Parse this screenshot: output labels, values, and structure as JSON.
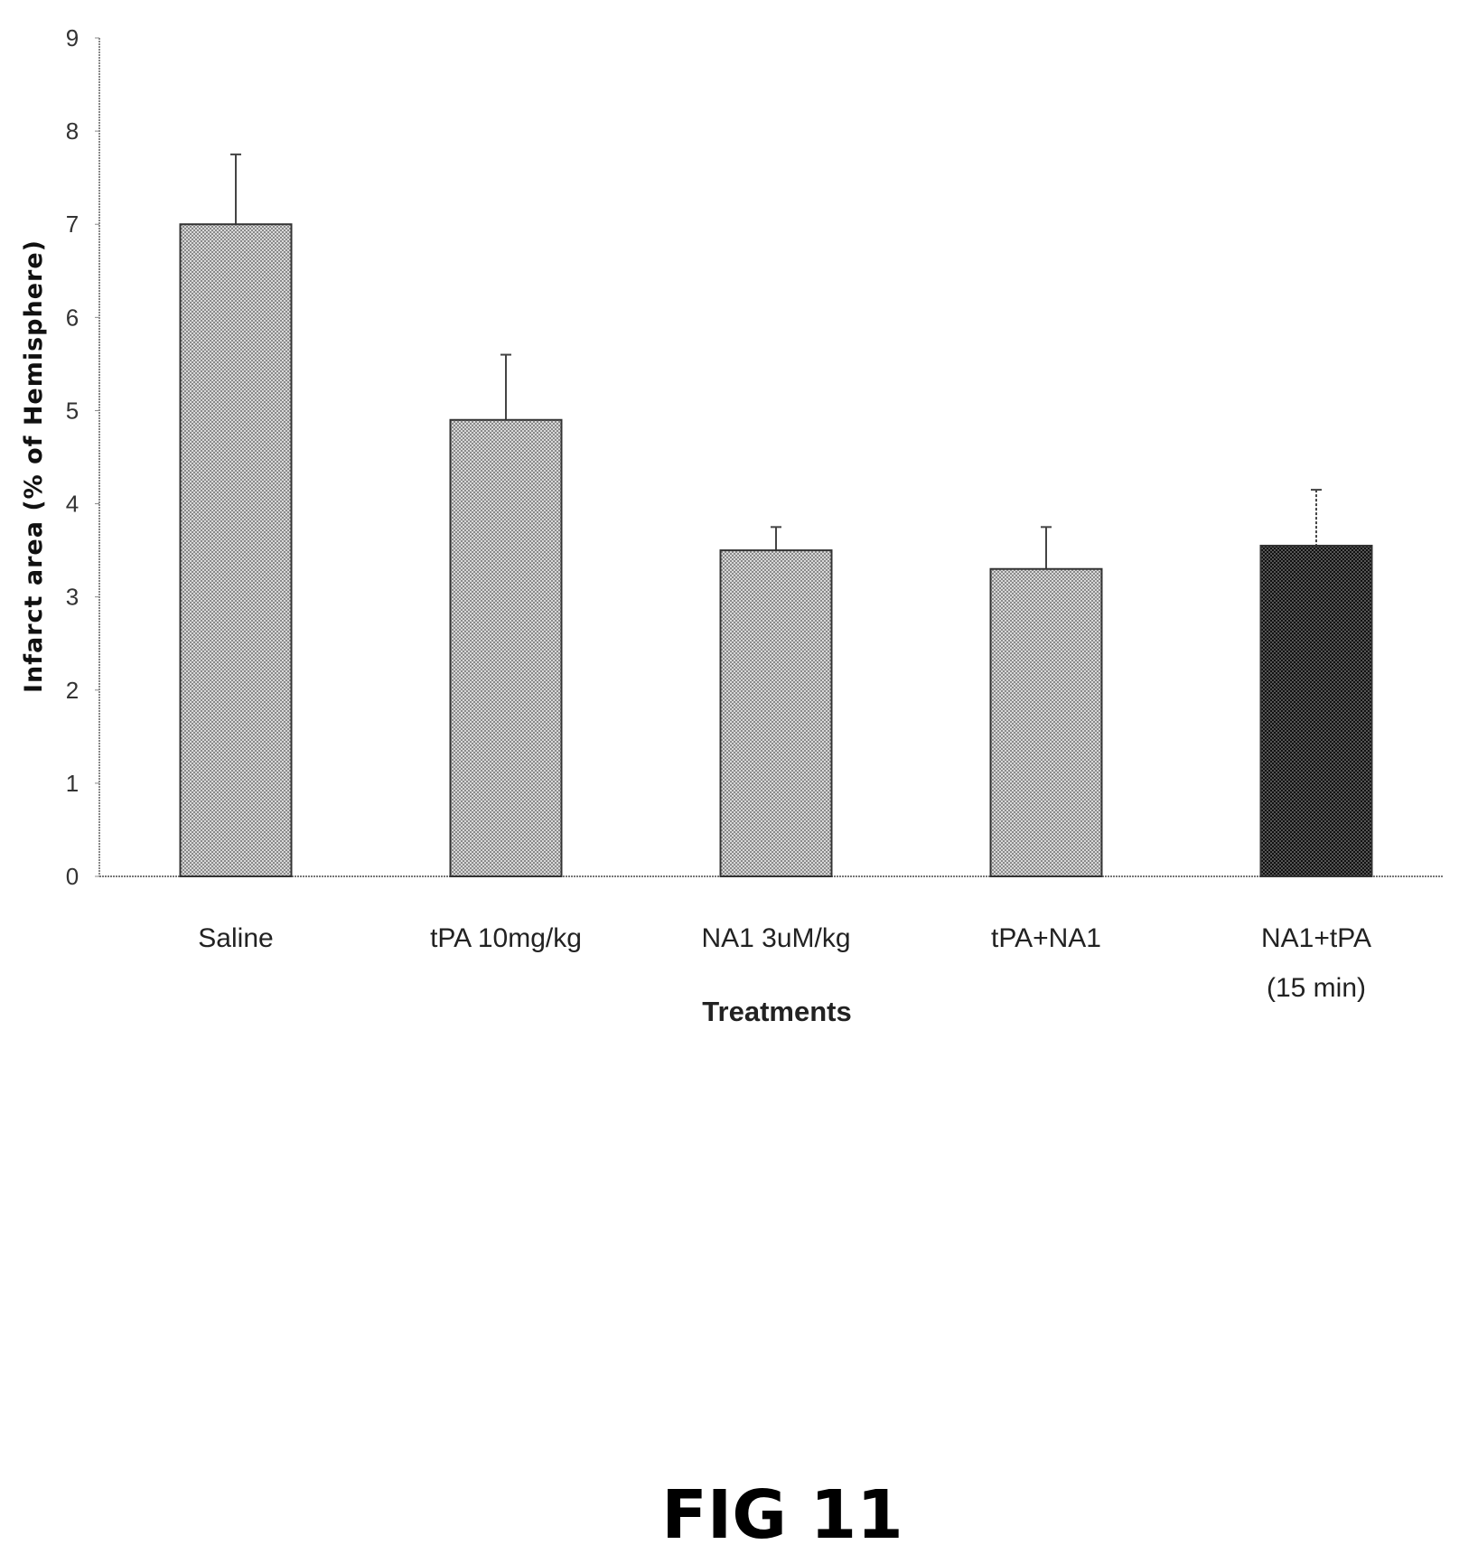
{
  "chart_data": {
    "type": "bar",
    "title": "",
    "xlabel": "Treatments",
    "ylabel": "Infarct area (% of Hemisphere)",
    "ylim": [
      0,
      9
    ],
    "yticks": [
      "0",
      "1",
      "2",
      "3",
      "4",
      "5",
      "6",
      "7",
      "8",
      "9"
    ],
    "categories": [
      "Saline",
      "tPA 10mg/kg",
      "NA1 3uM/kg",
      "tPA+NA1",
      "NA1+tPA"
    ],
    "category_sublabels": [
      "",
      "",
      "",
      "",
      "(15 min)"
    ],
    "values": [
      7.0,
      4.9,
      3.5,
      3.3,
      3.55
    ],
    "error_upper": [
      0.75,
      0.7,
      0.25,
      0.45,
      0.6
    ],
    "bar_colors": [
      "#b8b8b8",
      "#b8b8b8",
      "#b8b8b8",
      "#c4c4c4",
      "#2a2a2a"
    ],
    "grid": false
  },
  "figure_label": "FIG 11"
}
